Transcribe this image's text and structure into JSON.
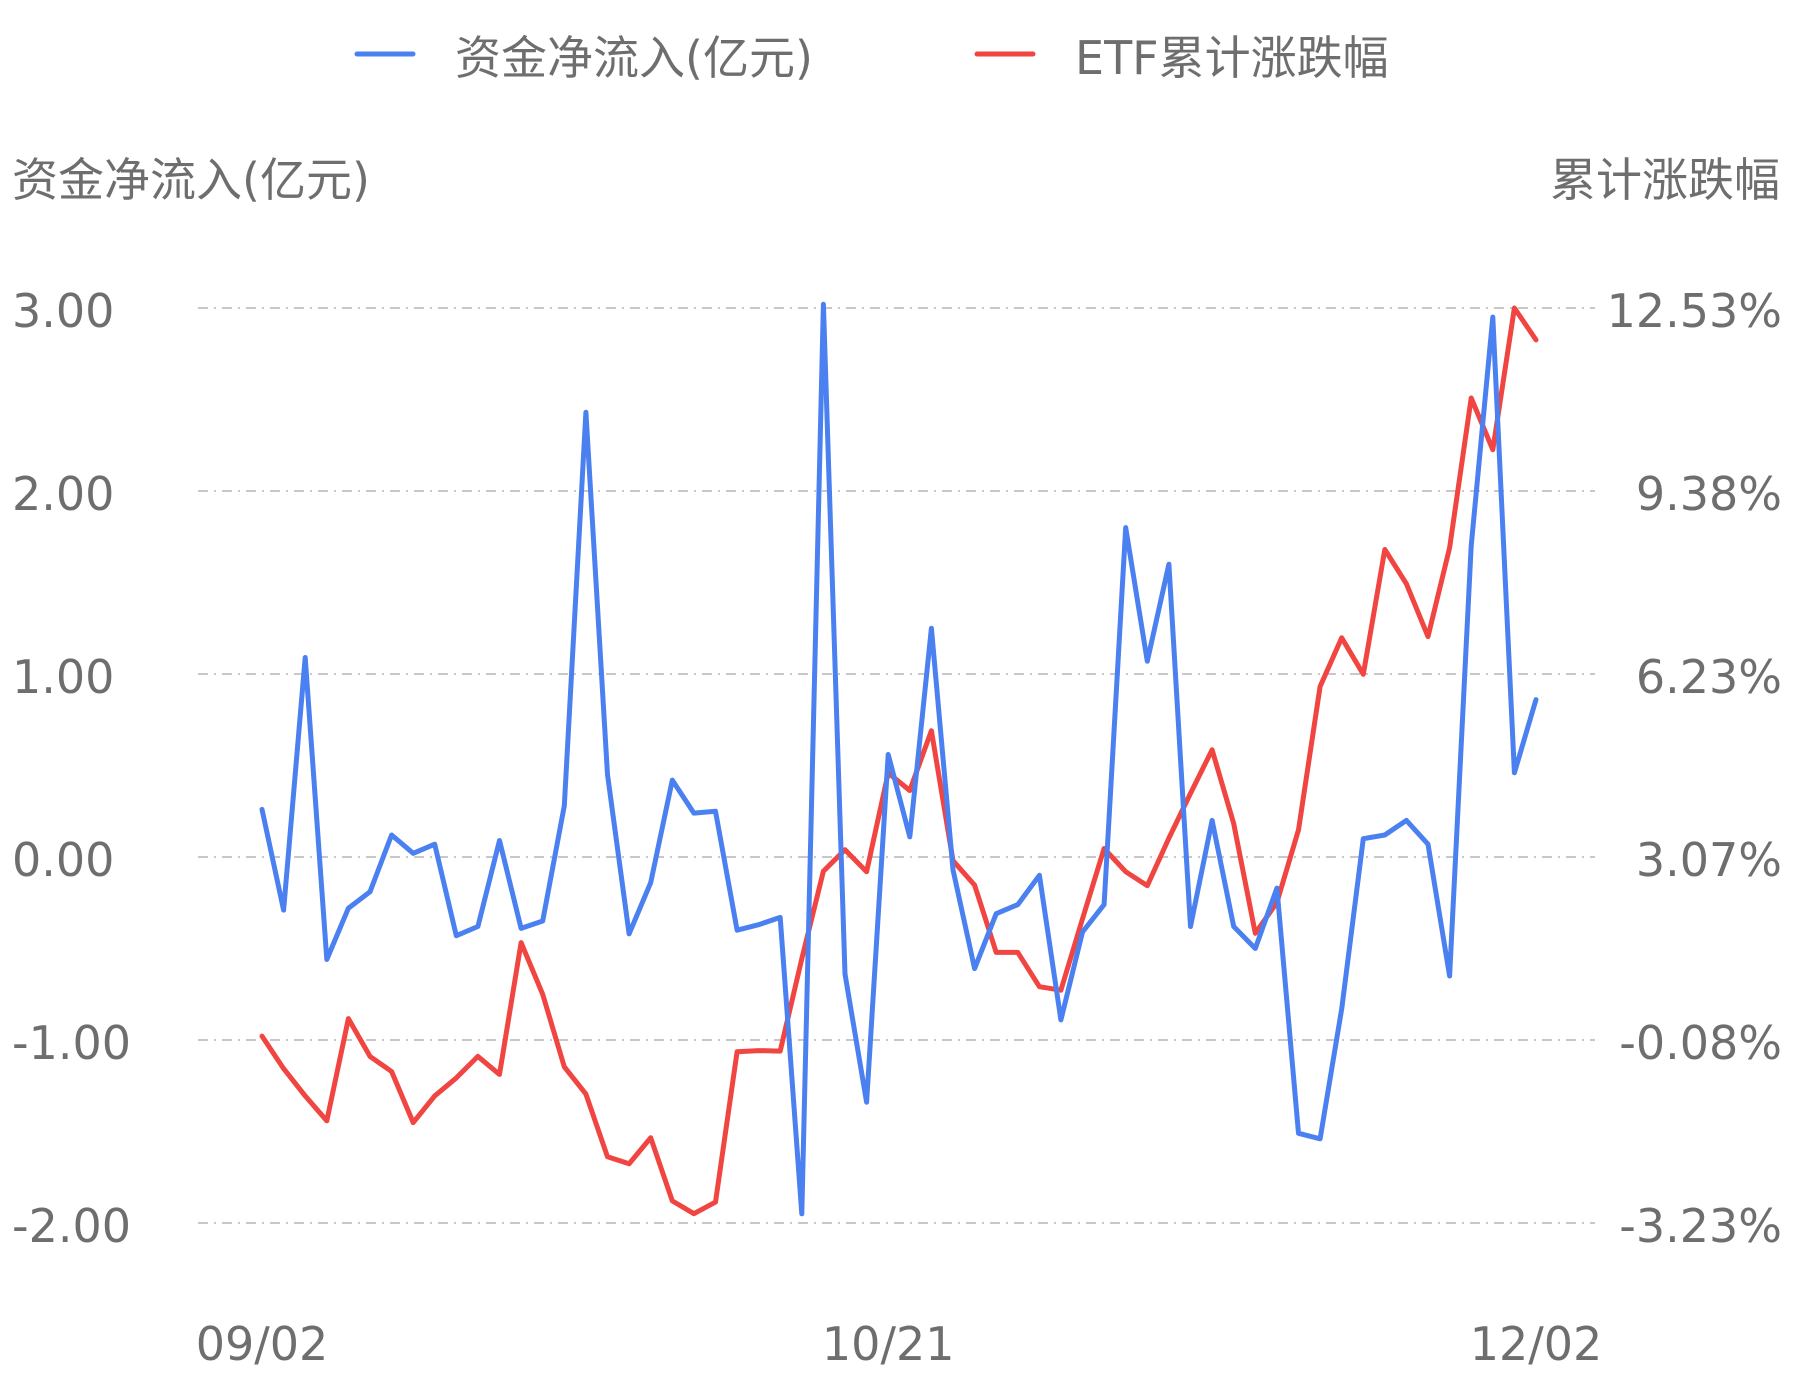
{
  "chart_data": {
    "type": "line",
    "legend": {
      "placement": "top-center",
      "items": [
        {
          "label": "资金净流入(亿元)",
          "color": "#4a80f0"
        },
        {
          "label": "ETF累计涨跌幅",
          "color": "#f04540"
        }
      ]
    },
    "y_left": {
      "label": "资金净流入(亿元)",
      "ticks": [
        "3.00",
        "2.00",
        "1.00",
        "0.00",
        "-1.00",
        "-2.00"
      ],
      "range": [
        -2,
        3
      ]
    },
    "y_right": {
      "label": "累计涨跌幅",
      "ticks": [
        "12.53%",
        "9.38%",
        "6.23%",
        "3.07%",
        "-0.08%",
        "-3.23%"
      ],
      "range": [
        -3.23,
        12.53
      ]
    },
    "x_tick_labels": [
      {
        "label": "09/02",
        "index": 0
      },
      {
        "label": "10/21",
        "index": 29
      },
      {
        "label": "12/02",
        "index": 59
      }
    ],
    "grid": true,
    "series": [
      {
        "name": "资金净流入(亿元)",
        "axis": "left",
        "color": "#4a80f0",
        "values": [
          0.26,
          -0.29,
          1.09,
          -0.56,
          -0.28,
          -0.19,
          0.12,
          0.02,
          0.07,
          -0.43,
          -0.38,
          0.09,
          -0.39,
          -0.35,
          0.28,
          2.43,
          0.45,
          -0.42,
          -0.14,
          0.42,
          0.24,
          0.25,
          -0.4,
          -0.37,
          -0.33,
          -1.95,
          3.02,
          -0.64,
          -1.34,
          0.56,
          0.11,
          1.25,
          -0.07,
          -0.61,
          -0.31,
          -0.26,
          -0.1,
          -0.89,
          -0.41,
          -0.26,
          1.8,
          1.07,
          1.6,
          -0.38,
          0.2,
          -0.38,
          -0.5,
          -0.17,
          -1.51,
          -1.54,
          -0.83,
          0.1,
          0.12,
          0.2,
          0.07,
          -0.65,
          1.7,
          2.95,
          0.46,
          0.86
        ]
      },
      {
        "name": "ETF累计涨跌幅",
        "axis": "right",
        "color": "#f04540",
        "values": [
          -0.01,
          -0.57,
          -1.04,
          -1.47,
          0.29,
          -0.36,
          -0.62,
          -1.5,
          -1.04,
          -0.73,
          -0.36,
          -0.67,
          1.6,
          0.71,
          -0.54,
          -1.01,
          -2.09,
          -2.21,
          -1.76,
          -2.85,
          -3.07,
          -2.87,
          -0.28,
          -0.26,
          -0.27,
          1.32,
          2.83,
          3.2,
          2.82,
          4.52,
          4.22,
          5.25,
          3.01,
          2.59,
          1.43,
          1.43,
          0.84,
          0.78,
          2.01,
          3.22,
          2.82,
          2.58,
          3.4,
          4.17,
          4.92,
          3.65,
          1.76,
          2.29,
          3.54,
          6.01,
          6.85,
          6.22,
          8.37,
          7.78,
          6.87,
          8.4,
          10.98,
          10.09,
          12.53,
          11.98
        ]
      }
    ]
  }
}
